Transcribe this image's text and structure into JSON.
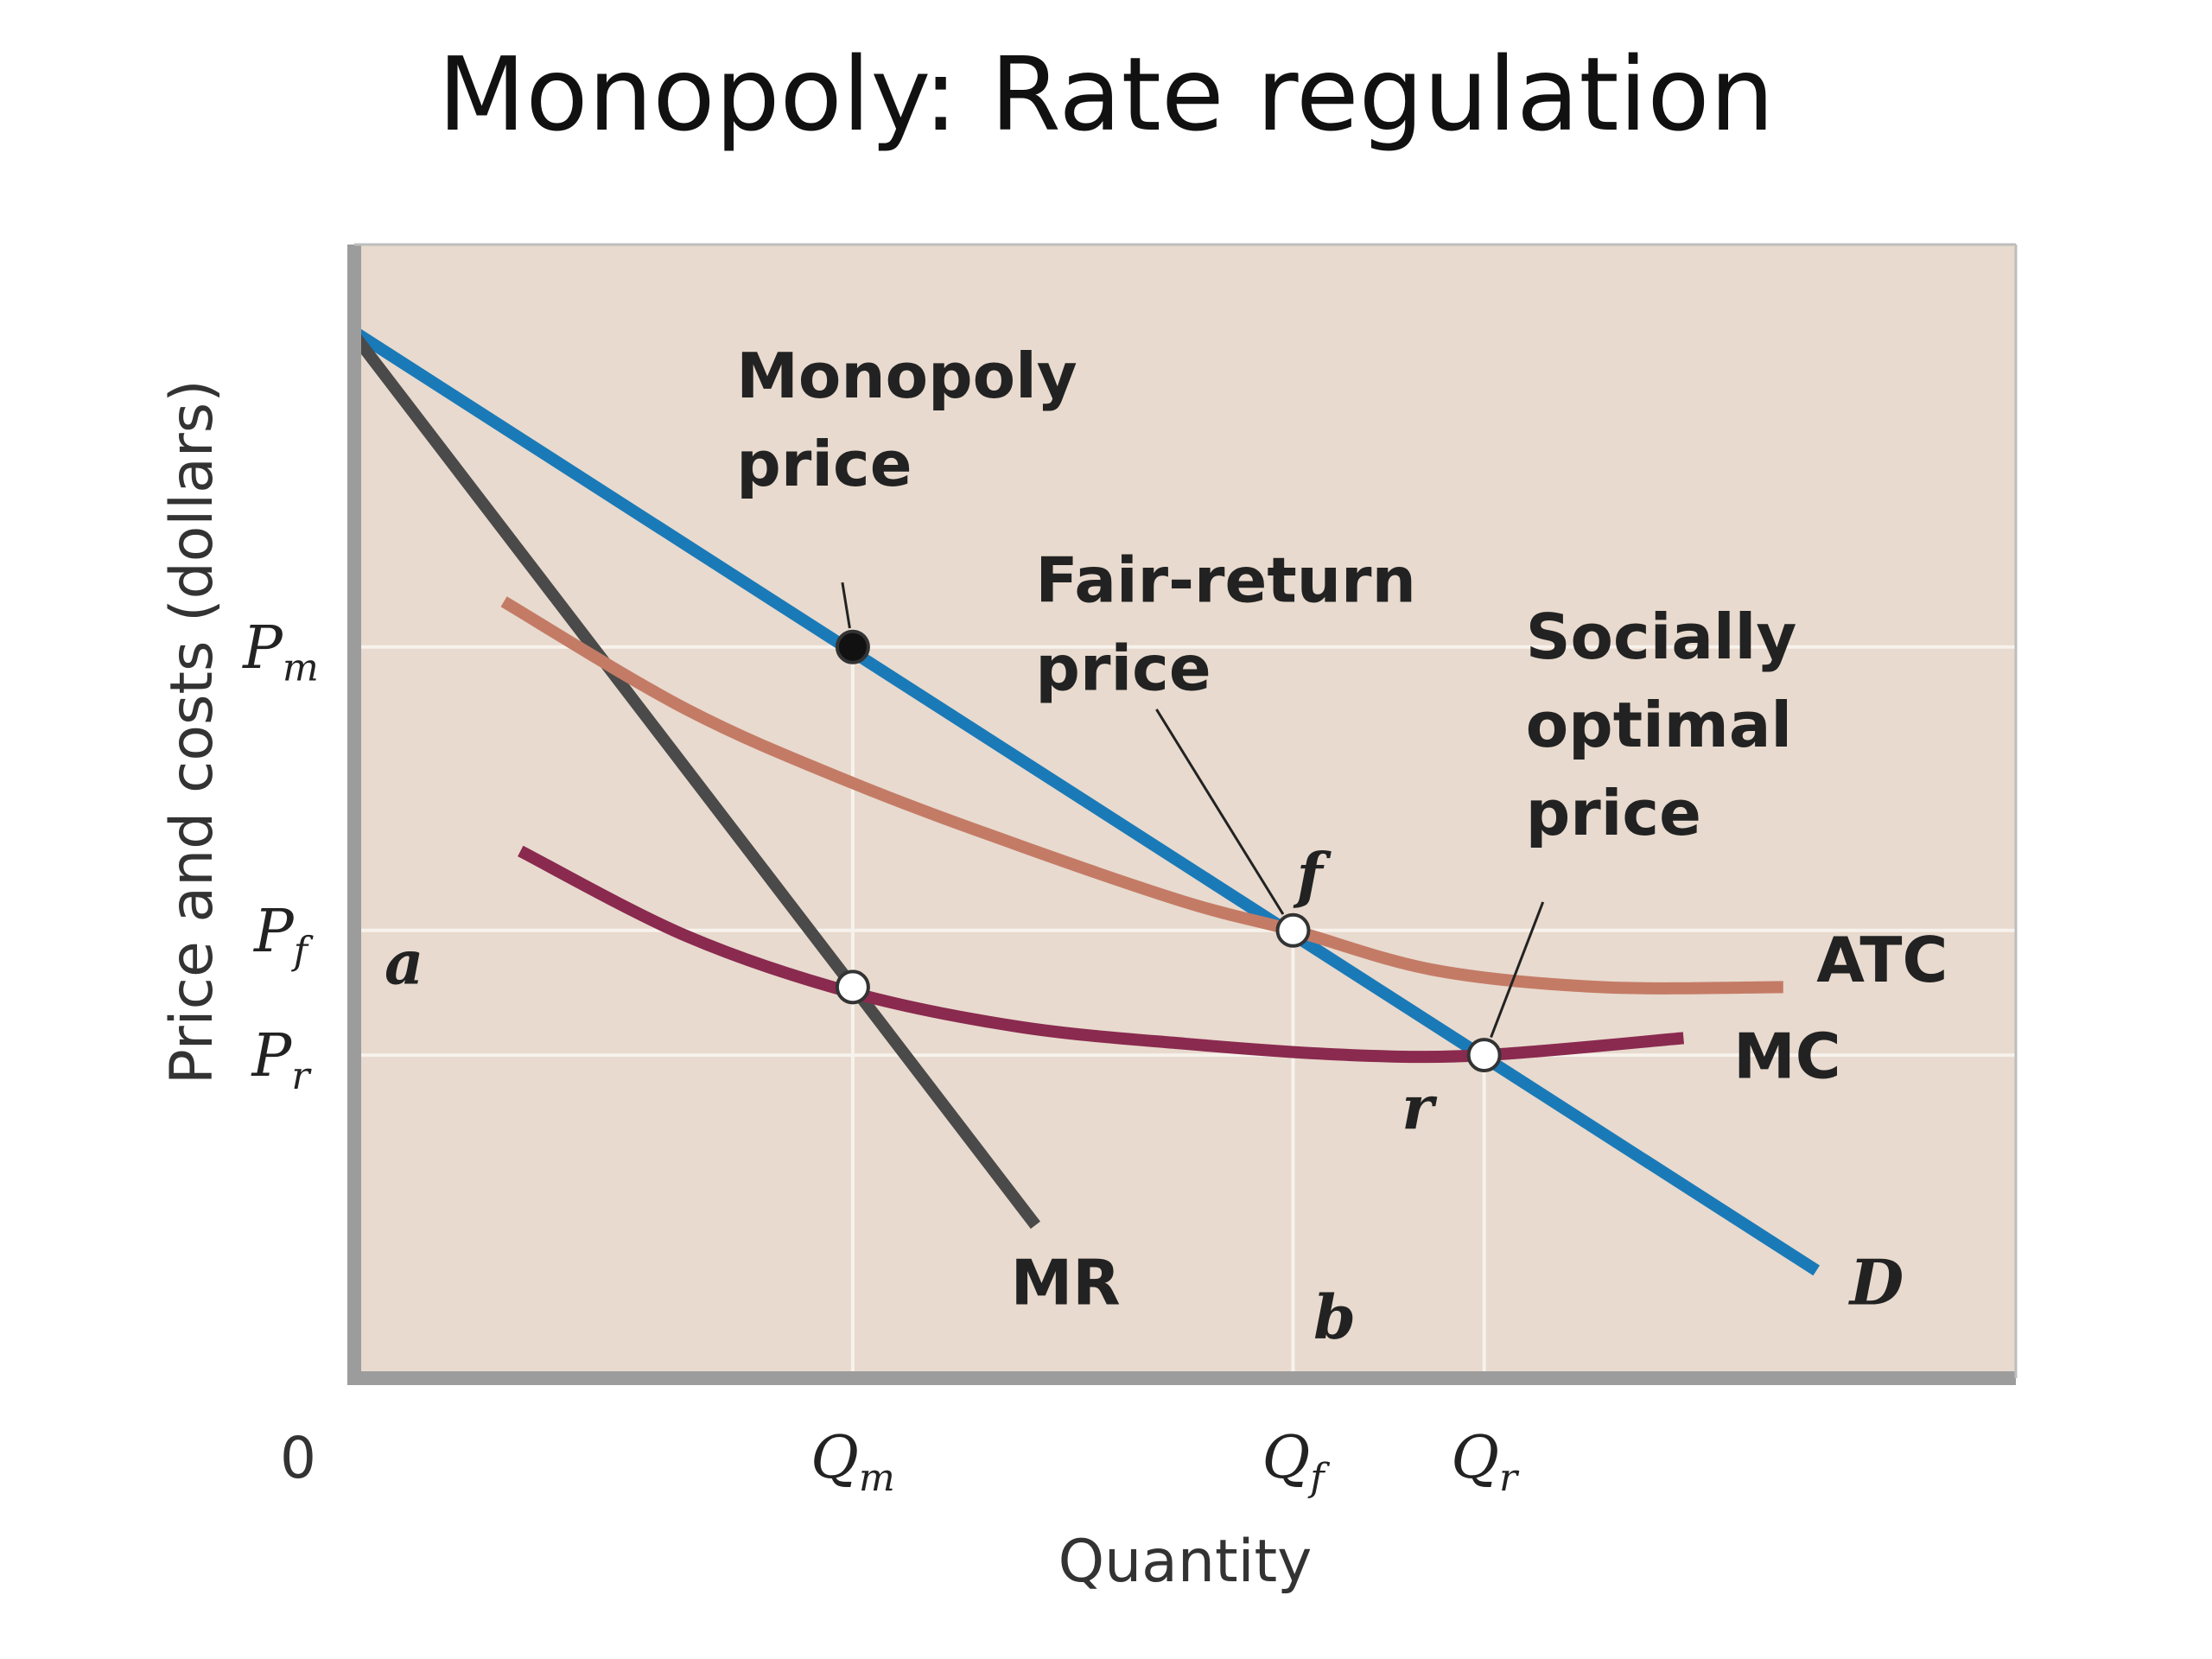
{
  "slide": {
    "title": "Monopoly: Rate regulation"
  },
  "colors": {
    "plot_bg": "#e8dace",
    "demand": "#1a7ab8",
    "mr": "#4a4a4a",
    "atc": "#c47b66",
    "mc": "#8a2a4f",
    "axis": "#9c9c9c",
    "guide": "#f7f2ec"
  },
  "chart_data": {
    "type": "line",
    "title": "",
    "xlabel": "Quantity",
    "ylabel": "Price and costs (dollars)",
    "origin_label": "0",
    "xlim": [
      0,
      100
    ],
    "ylim": [
      0,
      100
    ],
    "grid": false,
    "x_ticks": [
      {
        "value": 30,
        "label": "Q",
        "sub": "m"
      },
      {
        "value": 56.5,
        "label": "Q",
        "sub": "f"
      },
      {
        "value": 68,
        "label": "Q",
        "sub": "r"
      }
    ],
    "y_ticks": [
      {
        "value": 64.5,
        "label": "P",
        "sub": "m"
      },
      {
        "value": 39.5,
        "label": "P",
        "sub": "f"
      },
      {
        "value": 28.5,
        "label": "P",
        "sub": "r"
      }
    ],
    "series": [
      {
        "name": "D",
        "x": [
          0,
          88
        ],
        "y": [
          92.3,
          9.5
        ]
      },
      {
        "name": "MR",
        "x": [
          0,
          41
        ],
        "y": [
          92,
          13.5
        ]
      },
      {
        "name": "ATC",
        "x": [
          9,
          20,
          30,
          40,
          50,
          56.5,
          65,
          75,
          86
        ],
        "y": [
          68.5,
          59,
          52.5,
          47,
          42,
          39.5,
          36,
          34.5,
          34.5
        ]
      },
      {
        "name": "MC",
        "x": [
          10,
          20,
          30,
          40,
          50,
          60,
          68,
          80
        ],
        "y": [
          46.5,
          39,
          34,
          31,
          29.5,
          28.5,
          28.5,
          30
        ]
      }
    ],
    "points": [
      {
        "x": 30,
        "y": 64.5,
        "filled": true
      },
      {
        "x": 56.5,
        "y": 39.5,
        "filled": false
      },
      {
        "x": 68,
        "y": 28.5,
        "filled": false
      },
      {
        "x": 30,
        "y": 34.5,
        "filled": false
      }
    ],
    "annotations": [
      {
        "lines": [
          "Monopoly",
          "price"
        ],
        "x": 23,
        "y": 86.5,
        "target": [
          30,
          64.5
        ]
      },
      {
        "lines": [
          "Fair-return",
          "price"
        ],
        "x": 41,
        "y": 68.5,
        "target": [
          56.5,
          39.5
        ]
      },
      {
        "lines": [
          "Socially",
          "optimal",
          "price"
        ],
        "x": 70.5,
        "y": 63.5,
        "target": [
          68,
          28.5
        ]
      }
    ],
    "point_letters": [
      {
        "text": "a",
        "x": 3,
        "y": 34.8
      },
      {
        "text": "f",
        "x": 57.5,
        "y": 42.5
      },
      {
        "text": "r",
        "x": 64,
        "y": 22
      },
      {
        "text": "b",
        "x": 59,
        "y": 3.5
      }
    ],
    "curve_labels": [
      {
        "text": "D",
        "x": 90,
        "y": 6.5
      },
      {
        "text": "MR",
        "x": 39.5,
        "y": 6.5
      },
      {
        "text": "ATC",
        "x": 88,
        "y": 35
      },
      {
        "text": "MC",
        "x": 83,
        "y": 26.5
      }
    ]
  }
}
